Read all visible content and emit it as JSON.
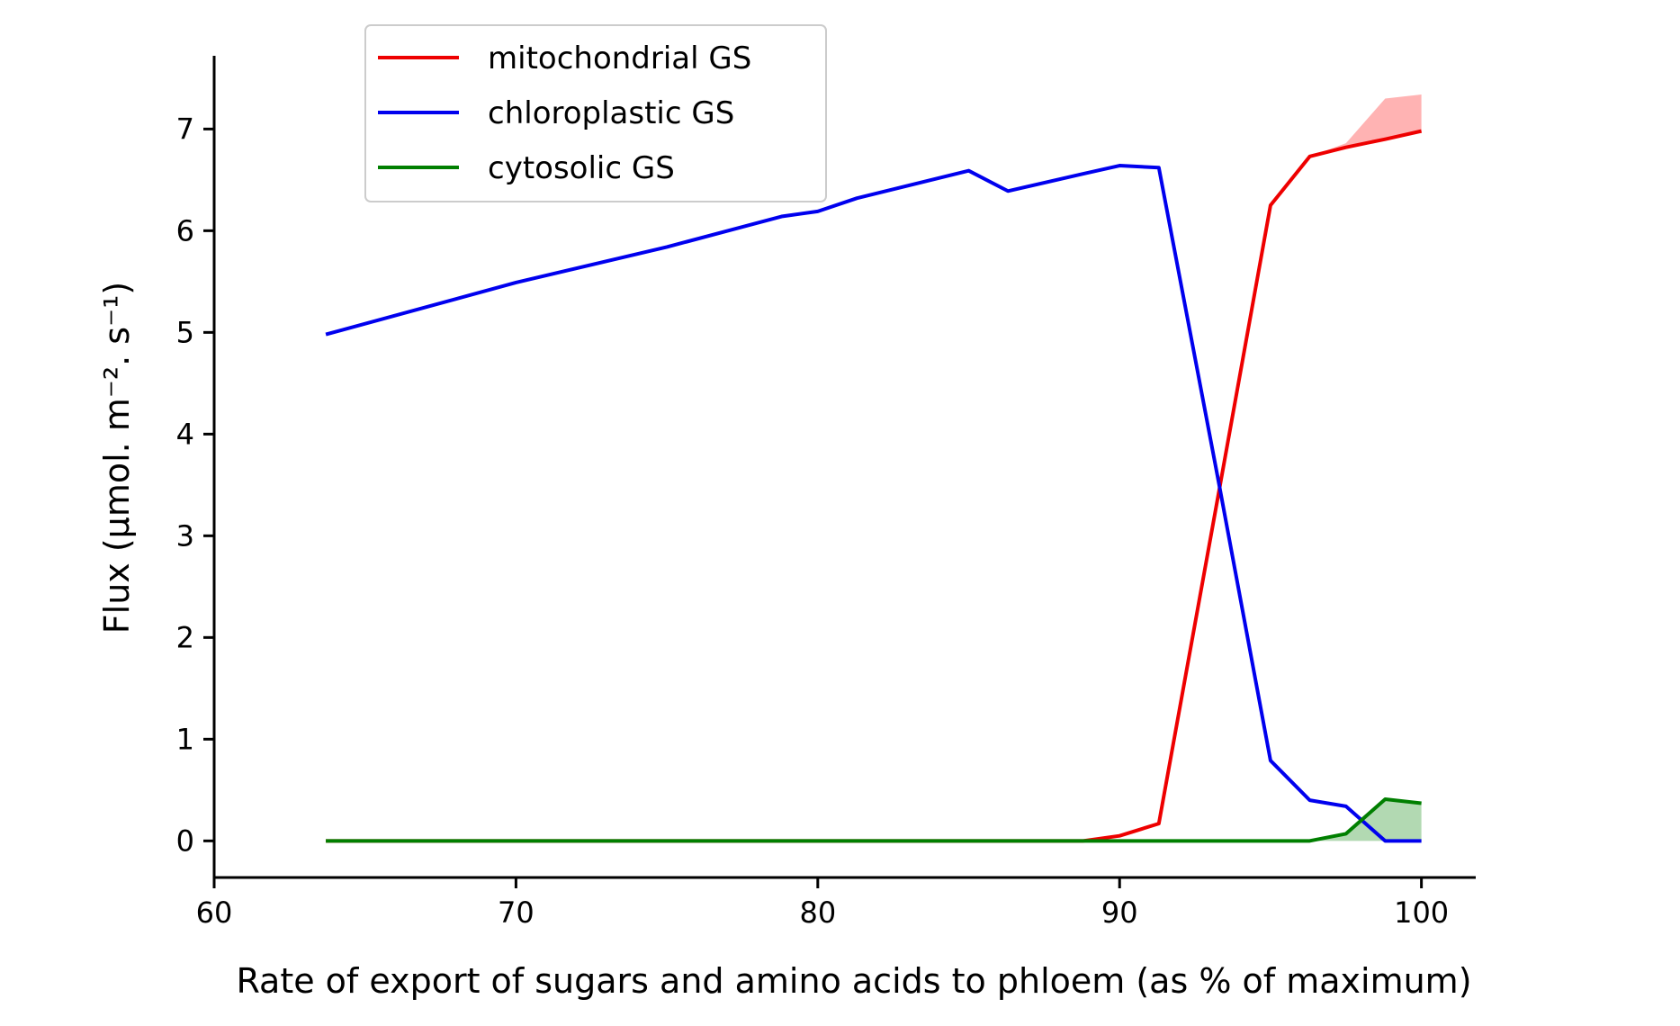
{
  "chart_data": {
    "type": "line",
    "xlabel": "Rate of export of sugars and amino acids to phloem (as % of maximum)",
    "ylabel": "Flux (µmol. m⁻². s⁻¹)",
    "xlim": [
      60,
      101.8
    ],
    "ylim": [
      -0.36,
      7.72
    ],
    "xticks": [
      "60",
      "70",
      "80",
      "90",
      "100"
    ],
    "yticks": [
      "0",
      "1",
      "2",
      "3",
      "4",
      "5",
      "6",
      "7"
    ],
    "legend_position": "top-left",
    "grid": false,
    "series": [
      {
        "name": "mitochondrial GS",
        "color": "#ee0000",
        "points": [
          [
            63.7,
            0
          ],
          [
            70,
            0
          ],
          [
            80,
            0
          ],
          [
            88.8,
            0
          ],
          [
            90,
            0.05
          ],
          [
            91.3,
            0.17
          ],
          [
            93.3,
            3.45
          ],
          [
            95,
            6.25
          ],
          [
            96.3,
            6.73
          ],
          [
            97.5,
            6.82
          ],
          [
            98.8,
            6.9
          ],
          [
            100,
            6.98
          ]
        ]
      },
      {
        "name": "chloroplastic GS",
        "color": "#0000ee",
        "points": [
          [
            63.7,
            4.98
          ],
          [
            70,
            5.49
          ],
          [
            75,
            5.84
          ],
          [
            78.8,
            6.14
          ],
          [
            80,
            6.19
          ],
          [
            81.3,
            6.32
          ],
          [
            85,
            6.59
          ],
          [
            86.3,
            6.39
          ],
          [
            88.8,
            6.56
          ],
          [
            90,
            6.64
          ],
          [
            91.3,
            6.62
          ],
          [
            93.3,
            3.5
          ],
          [
            95,
            0.79
          ],
          [
            96.3,
            0.4
          ],
          [
            97.5,
            0.34
          ],
          [
            98.8,
            0
          ],
          [
            100,
            0
          ]
        ]
      },
      {
        "name": "cytosolic GS",
        "color": "#007f00",
        "points": [
          [
            63.7,
            0
          ],
          [
            70,
            0
          ],
          [
            80,
            0
          ],
          [
            90,
            0
          ],
          [
            95,
            0
          ],
          [
            96.3,
            0
          ],
          [
            97.5,
            0.07
          ],
          [
            98.8,
            0.41
          ],
          [
            100,
            0.37
          ]
        ]
      }
    ],
    "bands": [
      {
        "series": "mitochondrial GS",
        "color": "#ff9a9a",
        "opacity": 0.75,
        "lower": [
          [
            96.3,
            6.73
          ],
          [
            97.5,
            6.82
          ],
          [
            98.8,
            6.9
          ],
          [
            100,
            6.98
          ]
        ],
        "upper": [
          [
            96.3,
            6.73
          ],
          [
            97.5,
            6.86
          ],
          [
            98.8,
            7.3
          ],
          [
            100,
            7.34
          ]
        ]
      },
      {
        "series": "cytosolic GS",
        "color": "#7fbf7f",
        "opacity": 0.6,
        "lower": [
          [
            96.3,
            0
          ],
          [
            97.5,
            0
          ],
          [
            98.8,
            0
          ],
          [
            100,
            0
          ]
        ],
        "upper": [
          [
            96.3,
            0
          ],
          [
            97.5,
            0.07
          ],
          [
            98.8,
            0.41
          ],
          [
            100,
            0.37
          ]
        ]
      }
    ]
  }
}
